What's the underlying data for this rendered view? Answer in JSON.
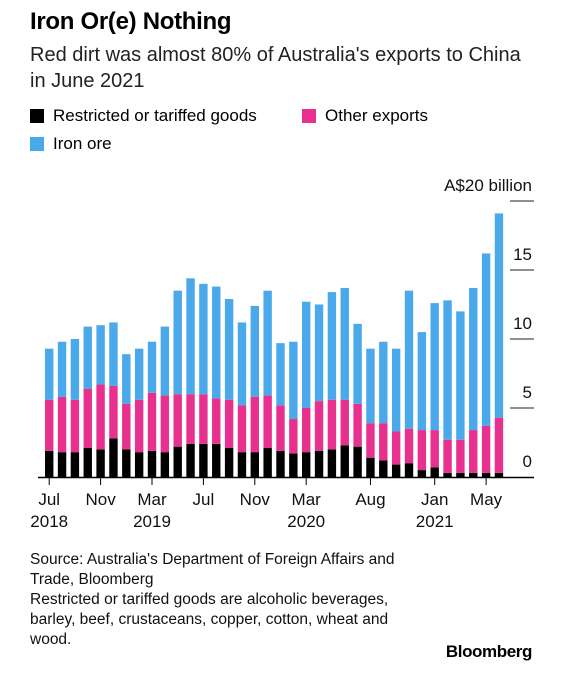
{
  "title": "Iron Or(e) Nothing",
  "subtitle": "Red dirt was almost 80% of Australia's exports to China in June 2021",
  "legend": [
    {
      "label": "Restricted or tariffed goods",
      "color": "#000000"
    },
    {
      "label": "Other exports",
      "color": "#e8308f"
    },
    {
      "label": "Iron ore",
      "color": "#4aa9ea"
    }
  ],
  "source": "Source: Australia's Department of Foreign Affairs and Trade, Bloomberg",
  "note": "Restricted or tariffed goods are alcoholic beverages, barley, beef, crustaceans, copper, cotton, wheat and wood.",
  "brand": "Bloomberg",
  "chart_data": {
    "type": "bar",
    "stacked": true,
    "unit_label": "A$20 billion",
    "ylim": [
      0,
      20
    ],
    "yticks": [
      {
        "value": 20,
        "label": "A$20 billion"
      },
      {
        "value": 15,
        "label": "15"
      },
      {
        "value": 10,
        "label": "10"
      },
      {
        "value": 5,
        "label": "5"
      },
      {
        "value": 0,
        "label": "0"
      }
    ],
    "xticks": [
      {
        "index": 0,
        "label": "Jul",
        "year": "2018"
      },
      {
        "index": 4,
        "label": "Nov",
        "year": ""
      },
      {
        "index": 8,
        "label": "Mar",
        "year": "2019"
      },
      {
        "index": 12,
        "label": "Jul",
        "year": ""
      },
      {
        "index": 16,
        "label": "Nov",
        "year": ""
      },
      {
        "index": 20,
        "label": "Mar",
        "year": "2020"
      },
      {
        "index": 25,
        "label": "Aug",
        "year": ""
      },
      {
        "index": 30,
        "label": "Jan",
        "year": "2021"
      },
      {
        "index": 34,
        "label": "May",
        "year": ""
      }
    ],
    "categories": [
      "Jul 2018",
      "Aug 2018",
      "Sep 2018",
      "Oct 2018",
      "Nov 2018",
      "Dec 2018",
      "Jan 2019",
      "Feb 2019",
      "Mar 2019",
      "Apr 2019",
      "May 2019",
      "Jun 2019",
      "Jul 2019",
      "Aug 2019",
      "Sep 2019",
      "Oct 2019",
      "Nov 2019",
      "Dec 2019",
      "Jan 2020",
      "Feb 2020",
      "Mar 2020",
      "Apr 2020",
      "May 2020",
      "Jun 2020",
      "Jul 2020",
      "Aug 2020",
      "Sep 2020",
      "Oct 2020",
      "Nov 2020",
      "Dec 2020",
      "Jan 2021",
      "Feb 2021",
      "Mar 2021",
      "Apr 2021",
      "May 2021",
      "Jun 2021"
    ],
    "series": [
      {
        "name": "Restricted or tariffed goods",
        "color": "#000000",
        "values": [
          1.9,
          1.8,
          1.8,
          2.1,
          2.0,
          2.8,
          2.0,
          1.8,
          1.9,
          1.8,
          2.2,
          2.4,
          2.4,
          2.4,
          2.1,
          1.8,
          1.8,
          2.1,
          1.9,
          1.7,
          1.8,
          1.9,
          2.0,
          2.3,
          2.2,
          1.4,
          1.2,
          0.9,
          1.0,
          0.5,
          0.7,
          0.3,
          0.3,
          0.3,
          0.3,
          0.3
        ]
      },
      {
        "name": "Other exports",
        "color": "#e8308f",
        "values": [
          3.7,
          4.0,
          3.8,
          4.3,
          4.7,
          3.8,
          3.3,
          3.8,
          4.2,
          4.1,
          3.8,
          3.6,
          3.6,
          3.3,
          3.5,
          3.4,
          4.0,
          3.8,
          3.3,
          2.5,
          3.2,
          3.6,
          3.6,
          3.3,
          3.1,
          2.5,
          2.7,
          2.4,
          2.5,
          2.9,
          2.7,
          2.4,
          2.4,
          3.1,
          3.4,
          4.0
        ]
      },
      {
        "name": "Iron ore",
        "color": "#4aa9ea",
        "values": [
          3.7,
          4.0,
          4.4,
          4.5,
          4.3,
          4.6,
          3.6,
          3.7,
          3.7,
          5.0,
          7.5,
          8.4,
          8.0,
          8.1,
          7.3,
          6.0,
          6.6,
          7.6,
          4.5,
          5.6,
          7.7,
          7.0,
          7.8,
          8.1,
          5.8,
          5.4,
          5.9,
          6.0,
          10.0,
          7.1,
          9.2,
          10.1,
          9.3,
          10.3,
          12.5,
          14.8
        ]
      }
    ]
  }
}
